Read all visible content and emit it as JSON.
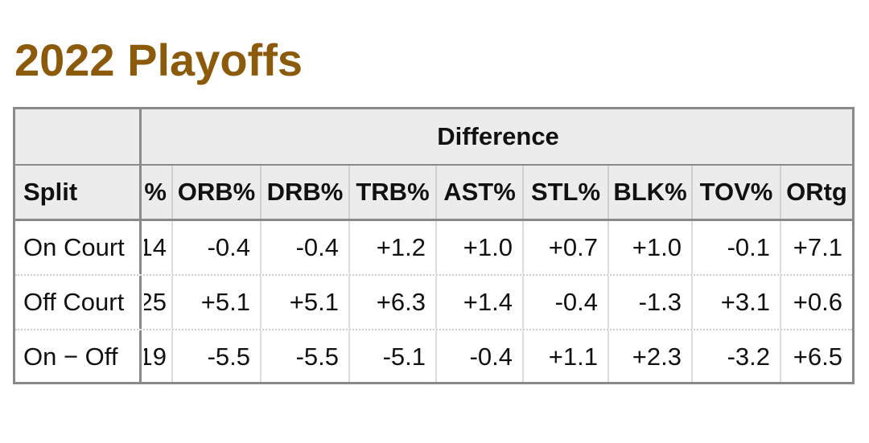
{
  "title": "2022 Playoffs",
  "table": {
    "group_header": "Difference",
    "headers": [
      "Split",
      "%",
      "ORB%",
      "DRB%",
      "TRB%",
      "AST%",
      "STL%",
      "BLK%",
      "TOV%",
      "ORtg"
    ],
    "rows": [
      {
        "split": "On Court",
        "partial": "14",
        "values": [
          "-0.4",
          "-0.4",
          "+1.2",
          "+1.0",
          "+0.7",
          "+1.0",
          "-0.1",
          "+7.1"
        ]
      },
      {
        "split": "Off Court",
        "partial": "25",
        "values": [
          "+5.1",
          "+5.1",
          "+6.3",
          "+1.4",
          "-0.4",
          "-1.3",
          "+3.1",
          "+0.6"
        ]
      },
      {
        "split": "On − Off",
        "partial": "19",
        "values": [
          "-5.5",
          "-5.5",
          "-5.1",
          "-0.4",
          "+1.1",
          "+2.3",
          "-3.2",
          "+6.5"
        ]
      }
    ]
  }
}
